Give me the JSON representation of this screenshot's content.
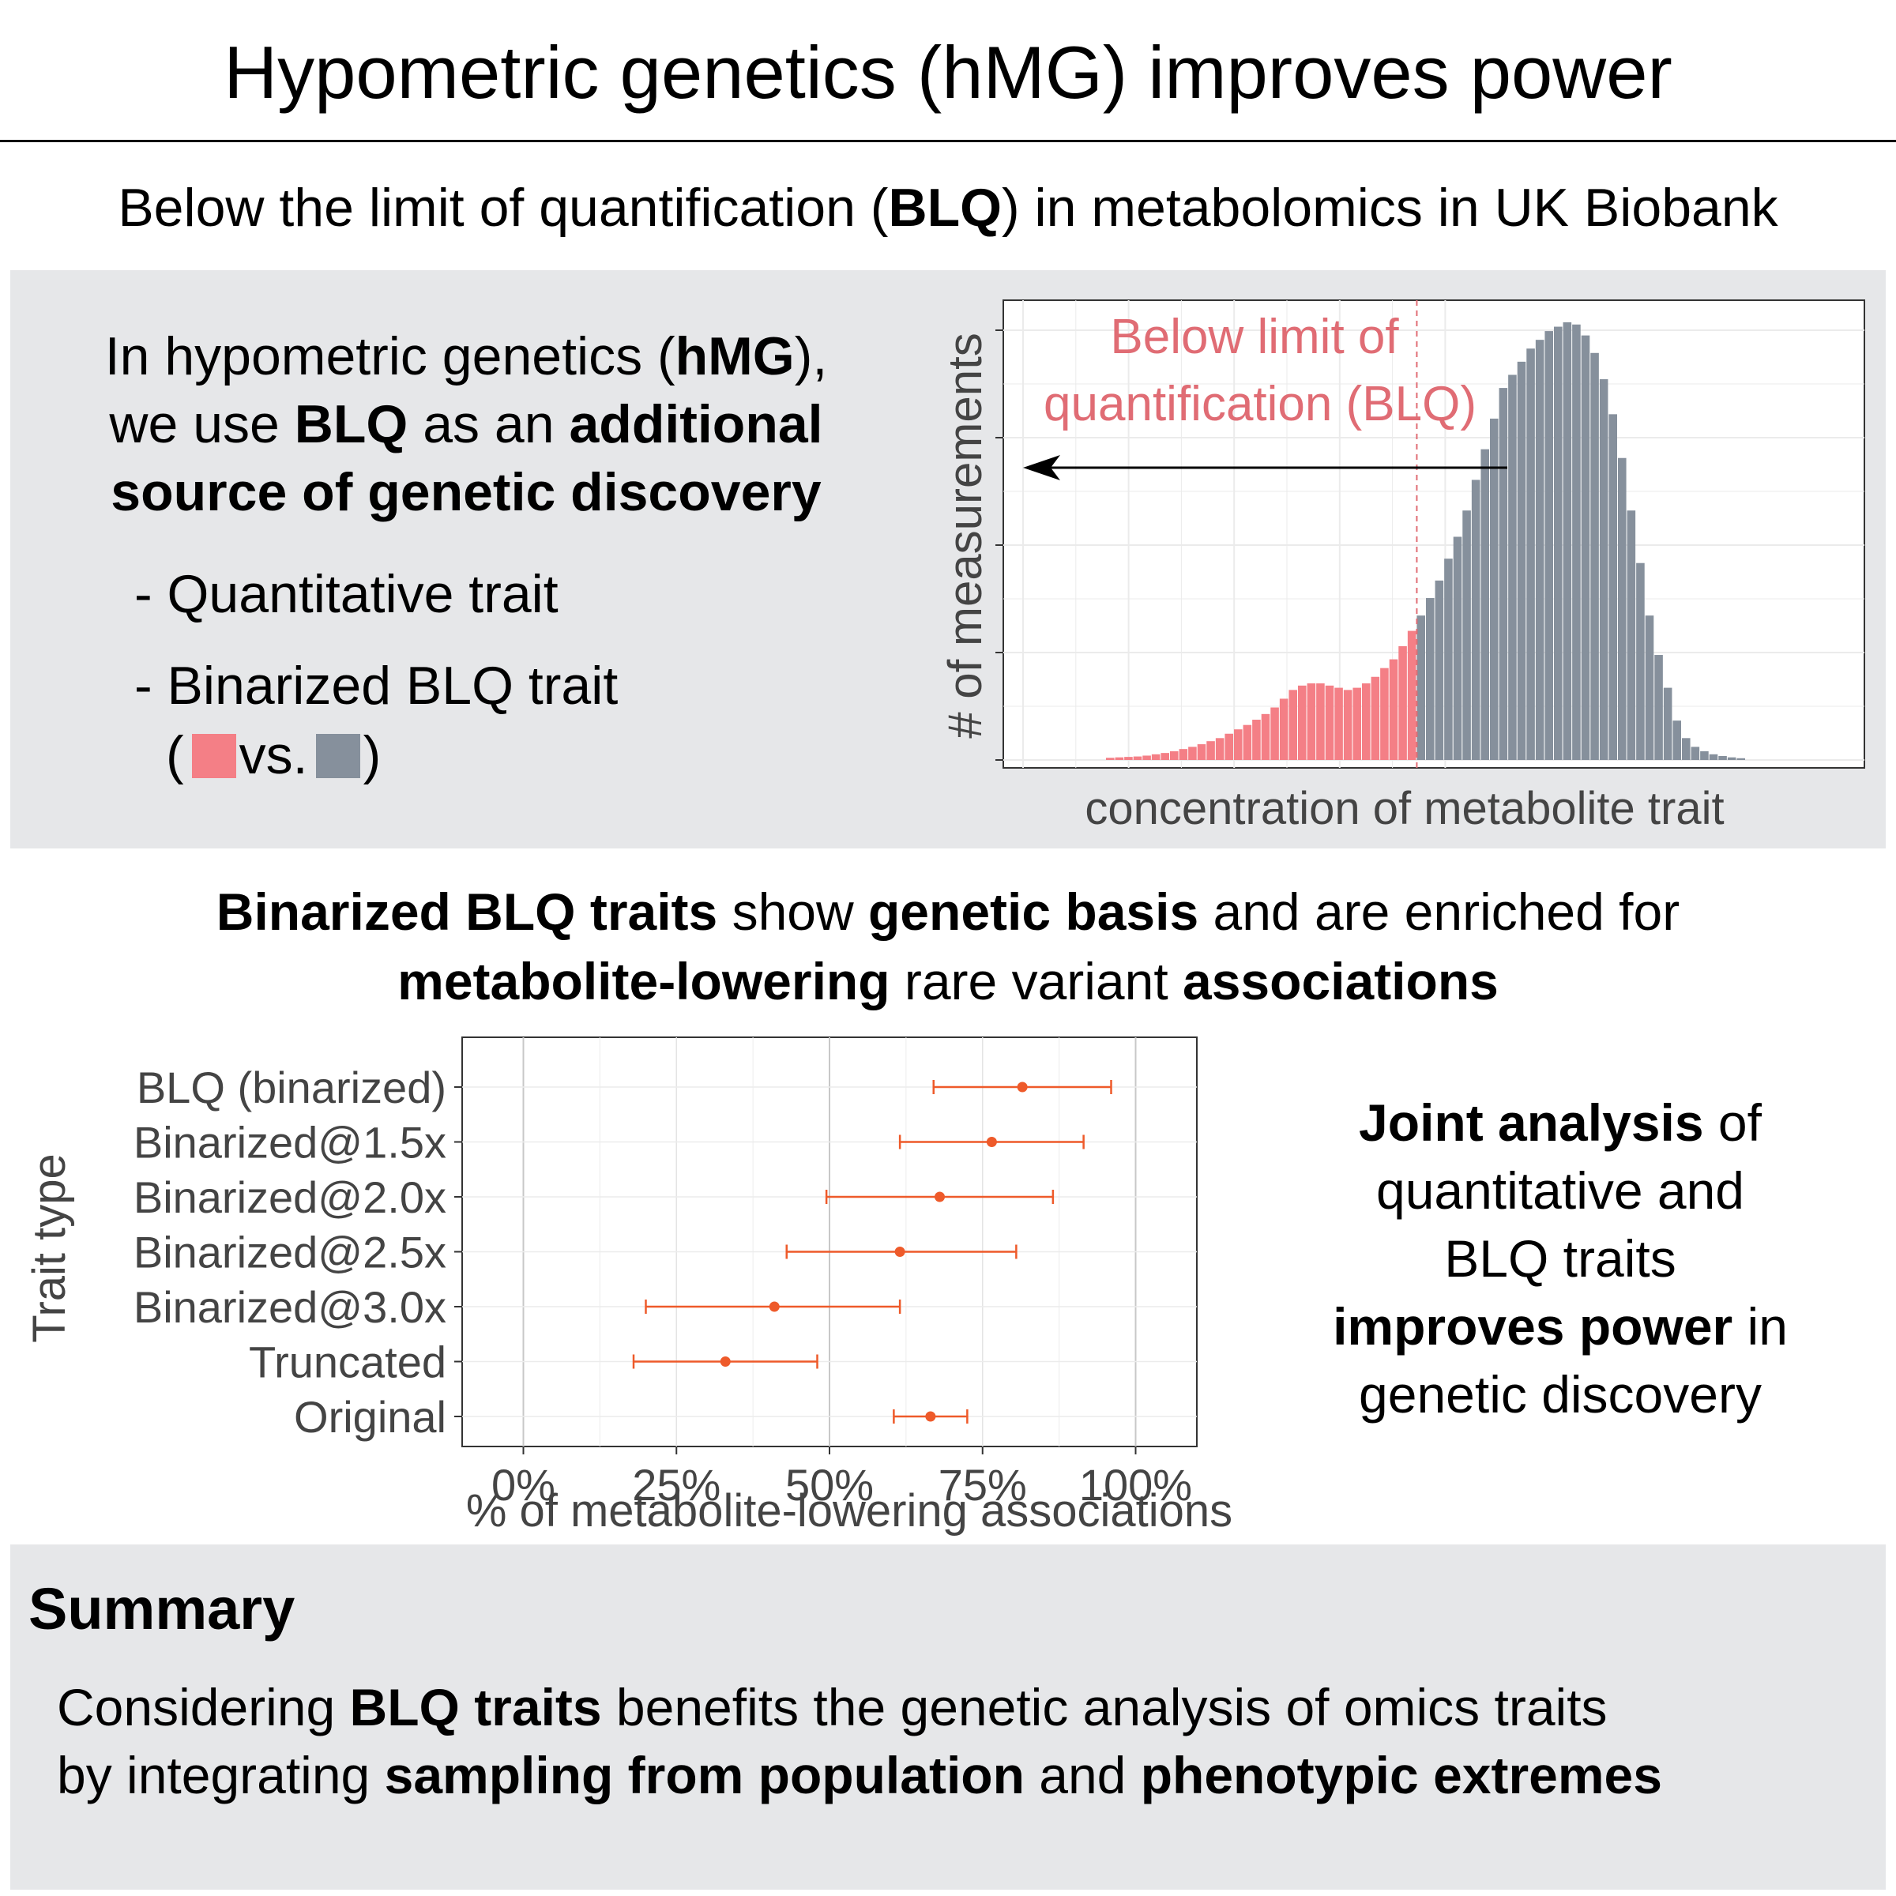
{
  "header": {
    "title": "Hypometric genetics (hMG) improves power",
    "subtitle_pre": "Below the limit of quantification (",
    "subtitle_bold": "BLQ",
    "subtitle_post": ") in metabolomics in UK Biobank"
  },
  "hmg_panel": {
    "line1_pre": "In hypometric genetics (",
    "line1_bold": "hMG",
    "line1_post": "),",
    "line2_pre": "we use ",
    "line2_bold1": "BLQ",
    "line2_mid": " as an ",
    "line2_bold2": "additional",
    "line3_bold": "source of genetic discovery",
    "bullet1": "- Quantitative trait",
    "bullet2": "- Binarized BLQ trait",
    "legend_open": "(",
    "legend_vs": "vs.",
    "legend_close": ")",
    "color_blq": "#f47f86",
    "color_quant": "#86909c"
  },
  "histogram": {
    "annotation_line1": "Below limit of",
    "annotation_line2": "quantification (BLQ)",
    "ylabel": "# of measurements",
    "xlabel": "concentration of metabolite trait",
    "color_blq": "#f47f86",
    "color_quant": "#86909c",
    "annotation_color": "#e06c74",
    "blq_bins": 34,
    "values": [
      0.5,
      0.6,
      0.7,
      0.8,
      1,
      1.3,
      1.6,
      2,
      2.5,
      3,
      3.6,
      4.3,
      5,
      6,
      7,
      8,
      9.2,
      10.5,
      12,
      14,
      16,
      17,
      17.5,
      17.5,
      17,
      16.5,
      16,
      16.5,
      17.5,
      19,
      21,
      23,
      26,
      29.5,
      33,
      37,
      41,
      46,
      51,
      57,
      64,
      71,
      78,
      85,
      88,
      91,
      94,
      96,
      98,
      99,
      100,
      99.5,
      97,
      93,
      87,
      79,
      69,
      57,
      45,
      33,
      24,
      16.5,
      9,
      5,
      3,
      2,
      1.3,
      0.9,
      0.6,
      0.4
    ]
  },
  "mid": {
    "line1_b1": "Binarized BLQ traits",
    "line1_m1": " show ",
    "line1_b2": "genetic basis",
    "line1_m2": " and are enriched for",
    "line2_b1": "metabolite-lowering",
    "line2_m1": " rare variant ",
    "line2_b2": "associations"
  },
  "chart_data": {
    "type": "scatter",
    "title": "",
    "xlabel": "% of metabolite-lowering associations",
    "ylabel": "Trait type",
    "xlim": [
      -0.1,
      1.1
    ],
    "x_ticks": [
      0,
      0.25,
      0.5,
      0.75,
      1.0
    ],
    "x_tick_labels": [
      "0%",
      "25%",
      "50%",
      "75%",
      "100%"
    ],
    "categories": [
      "BLQ (binarized)",
      "Binarized@1.5x",
      "Binarized@2.0x",
      "Binarized@2.5x",
      "Binarized@3.0x",
      "Truncated",
      "Original"
    ],
    "estimate": [
      0.815,
      0.765,
      0.68,
      0.615,
      0.41,
      0.33,
      0.665
    ],
    "ci_low": [
      0.67,
      0.615,
      0.495,
      0.43,
      0.2,
      0.18,
      0.605
    ],
    "ci_high": [
      0.96,
      0.915,
      0.865,
      0.805,
      0.615,
      0.48,
      0.725
    ],
    "color": "#ee5a2a",
    "grid": true
  },
  "joint": {
    "l1_bold": "Joint analysis",
    "l1_rest": " of",
    "l2": "quantitative and",
    "l3": "BLQ traits",
    "l4_bold": "improves power",
    "l4_rest": " in",
    "l5": "genetic discovery"
  },
  "summary": {
    "heading": "Summary",
    "l1_pre": "Considering ",
    "l1_bold": "BLQ traits",
    "l1_post": " benefits the genetic analysis of omics traits",
    "l2_pre": "by integrating ",
    "l2_bold1": "sampling from population",
    "l2_mid": " and ",
    "l2_bold2": "phenotypic extremes"
  }
}
